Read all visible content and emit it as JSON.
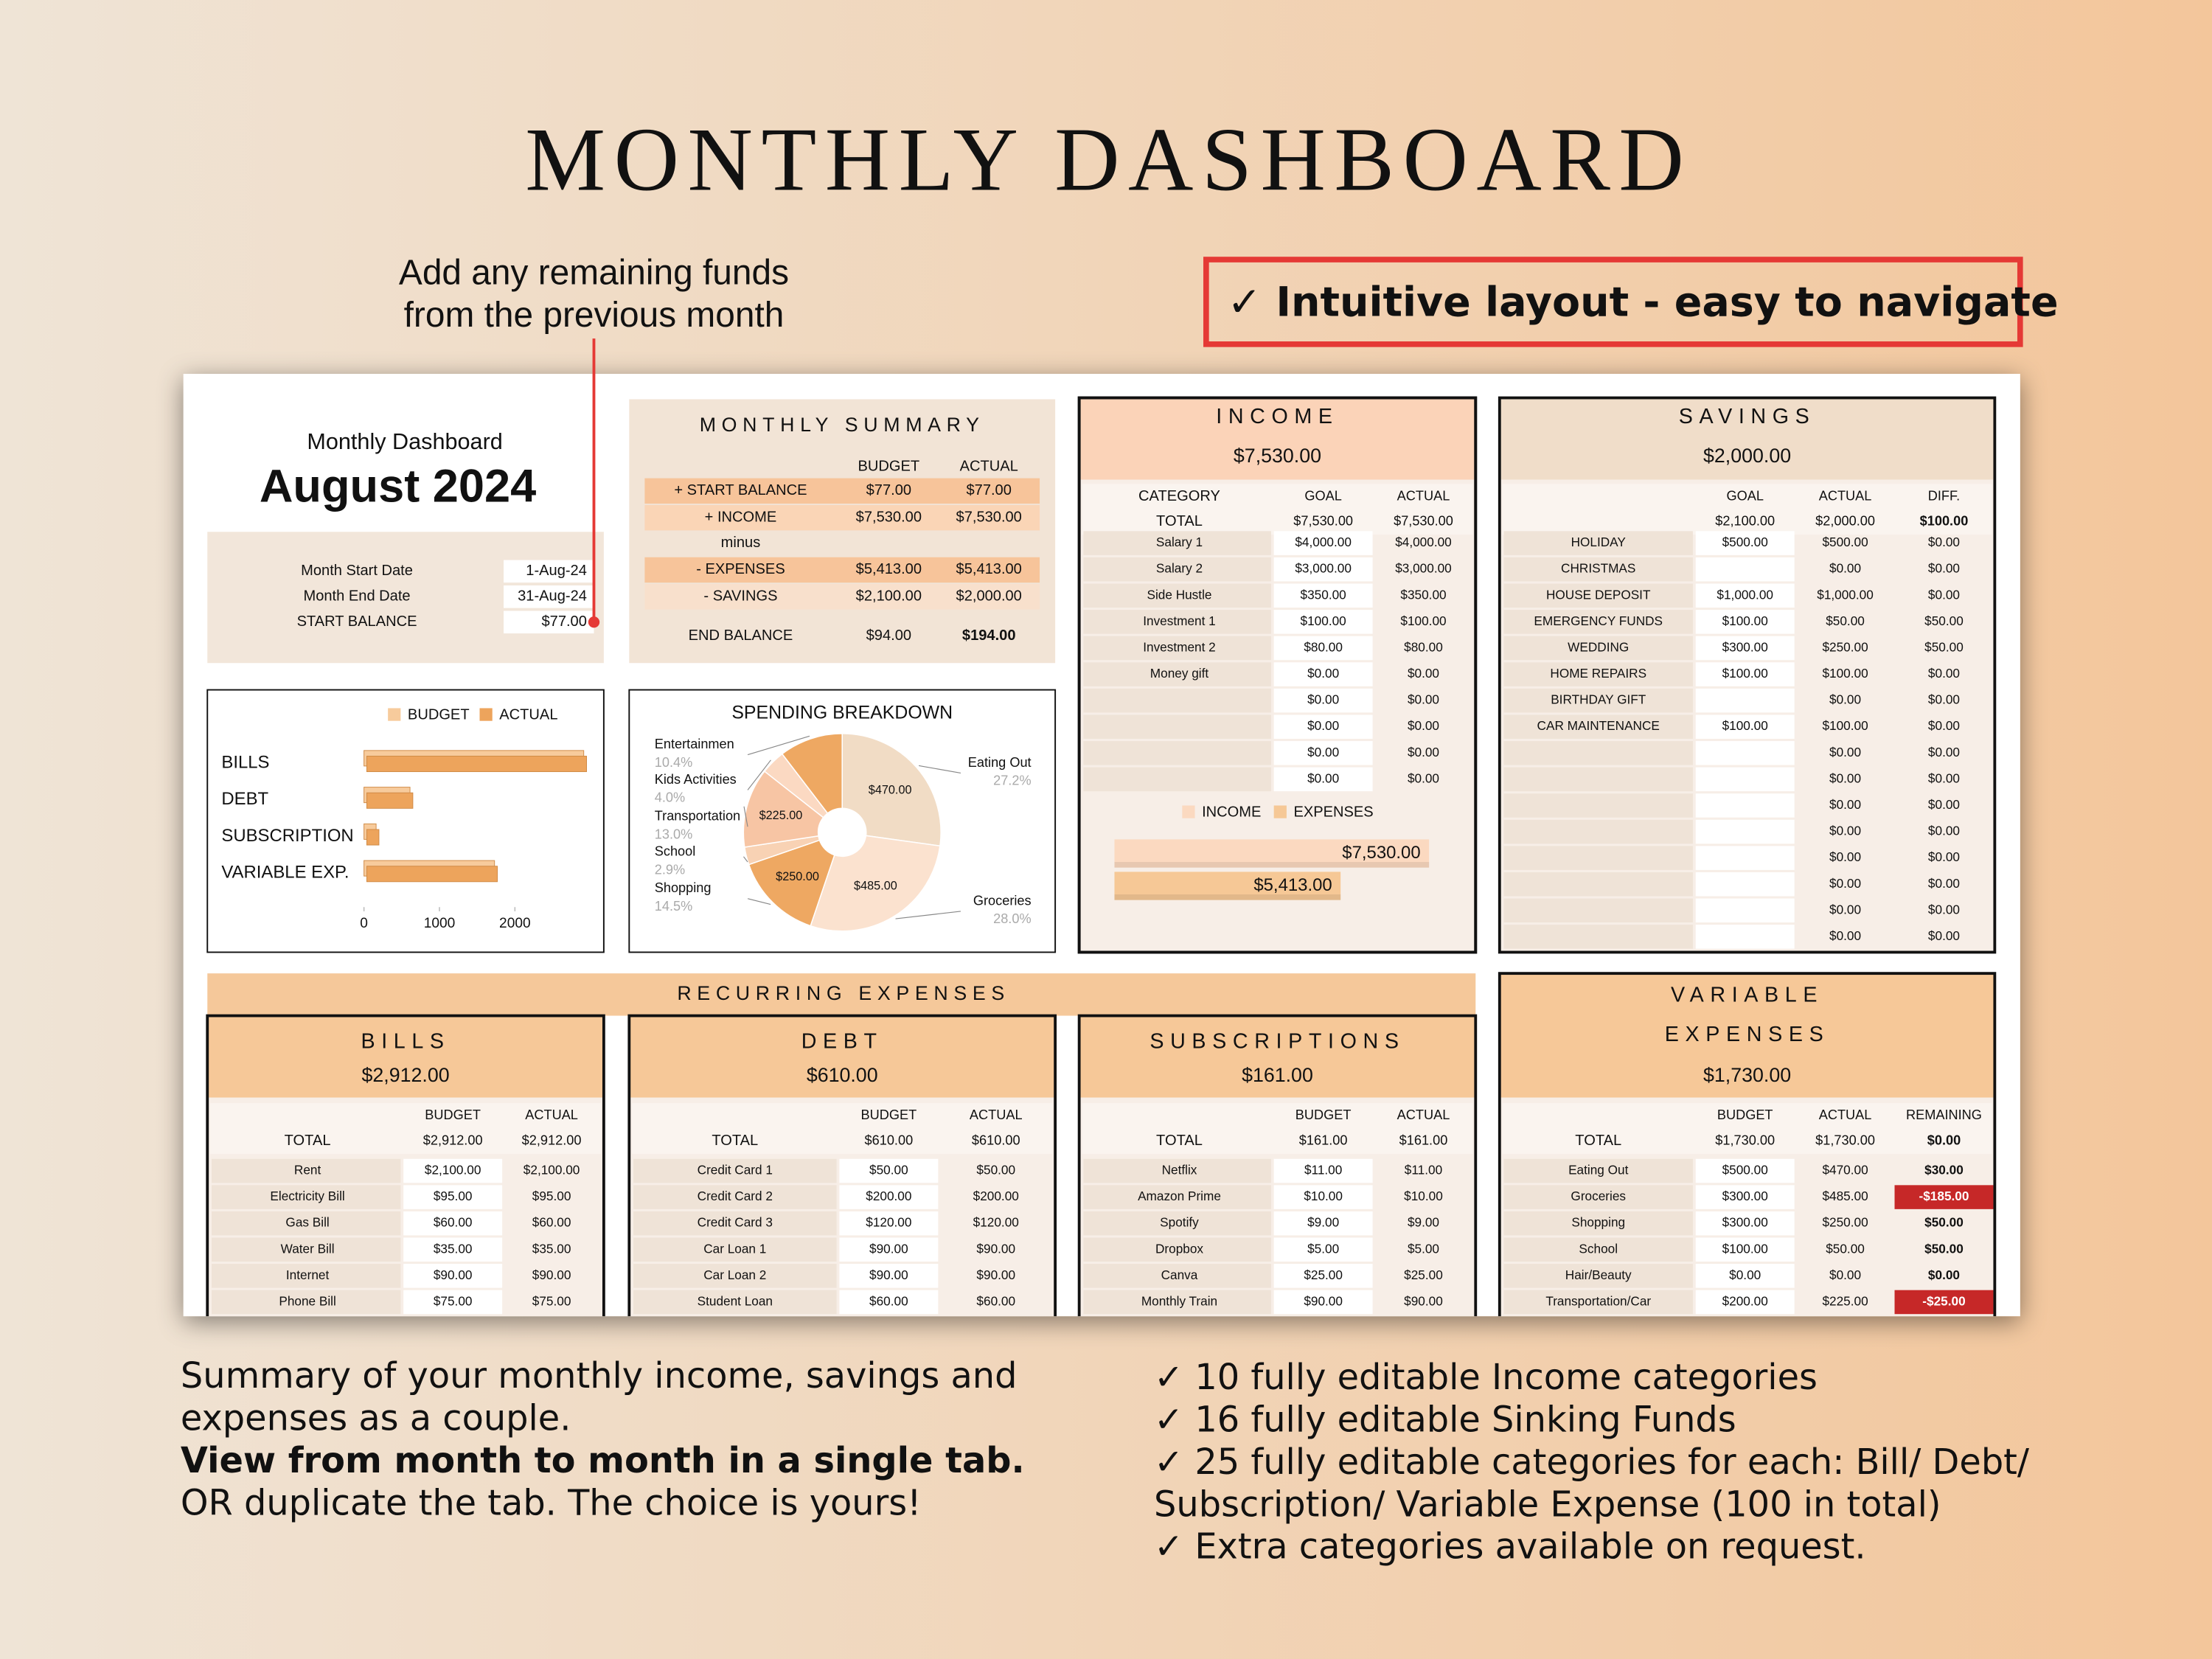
{
  "header": {
    "title": "MONTHLY DASHBOARD",
    "note": [
      "Add any remaining funds",
      "from the previous month"
    ],
    "badge": "✓ Intuitive layout - easy to navigate"
  },
  "dashboard": {
    "caption": "Monthly Dashboard",
    "month": "August 2024",
    "dates": [
      [
        "Month Start Date",
        "1-Aug-24"
      ],
      [
        "Month End Date",
        "31-Aug-24"
      ],
      [
        "START BALANCE",
        "$77.00"
      ]
    ]
  },
  "summary": {
    "title": "MONTHLY SUMMARY",
    "columns": [
      "BUDGET",
      "ACTUAL"
    ],
    "rows": [
      [
        "+ START BALANCE",
        "$77.00",
        "$77.00"
      ],
      [
        "+ INCOME",
        "$7,530.00",
        "$7,530.00"
      ],
      [
        "minus",
        null,
        null
      ],
      [
        "- EXPENSES",
        "$5,413.00",
        "$5,413.00"
      ],
      [
        "- SAVINGS",
        "$2,100.00",
        "$2,000.00"
      ],
      [
        "END BALANCE",
        "$94.00",
        "$194.00"
      ]
    ]
  },
  "chart_data": [
    {
      "type": "bar",
      "categories": [
        "BILLS",
        "DEBT",
        "SUBSCRIPTION",
        "VARIABLE EXP."
      ],
      "series": [
        {
          "name": "BUDGET",
          "color": "#f7cb9c",
          "values": [
            2912,
            610,
            161,
            1730
          ]
        },
        {
          "name": "ACTUAL",
          "color": "#eda45c",
          "values": [
            2912,
            610,
            161,
            1730
          ]
        }
      ],
      "xlim": [
        0,
        3000
      ],
      "xticks": [
        0,
        1000,
        2000
      ]
    },
    {
      "type": "pie",
      "title": "SPENDING BREAKDOWN",
      "categories": [
        "Eating Out",
        "Groceries",
        "Shopping",
        "School",
        "Transportation",
        "Kids Activities",
        "Entertainmen"
      ],
      "values": [
        27.2,
        28.0,
        14.5,
        2.9,
        13.0,
        4.0,
        10.4
      ],
      "value_labels": [
        "27.2%",
        "28.0%",
        "14.5%",
        "2.9%",
        "13.0%",
        "4.0%",
        "10.4%"
      ],
      "amount_labels": [
        "$470.00",
        "$485.00",
        "$250.00",
        null,
        "$225.00",
        null,
        null
      ],
      "colors": [
        "#f1dcc5",
        "#fbe2cf",
        "#eea862",
        "#f8d2b4",
        "#f7c5a4",
        "#fbd9c2",
        "#eea862"
      ]
    },
    {
      "type": "bar",
      "series": [
        {
          "name": "INCOME",
          "color": "#fbd9c0",
          "values": [
            7530
          ],
          "value_labels": [
            "$7,530.00"
          ]
        },
        {
          "name": "EXPENSES",
          "color": "#f6c896",
          "values": [
            5413
          ],
          "value_labels": [
            "$5,413.00"
          ]
        }
      ]
    }
  ],
  "income": {
    "title": "INCOME",
    "total": "$7,530.00",
    "columns": [
      "CATEGORY",
      "GOAL",
      "ACTUAL"
    ],
    "total_row": [
      "TOTAL",
      "$7,530.00",
      "$7,530.00"
    ],
    "rows": [
      [
        "Salary 1",
        "$4,000.00",
        "$4,000.00"
      ],
      [
        "Salary 2",
        "$3,000.00",
        "$3,000.00"
      ],
      [
        "Side Hustle",
        "$350.00",
        "$350.00"
      ],
      [
        "Investment 1",
        "$100.00",
        "$100.00"
      ],
      [
        "Investment 2",
        "$80.00",
        "$80.00"
      ],
      [
        "Money gift",
        "$0.00",
        "$0.00"
      ],
      [
        null,
        "$0.00",
        "$0.00"
      ],
      [
        null,
        "$0.00",
        "$0.00"
      ],
      [
        null,
        "$0.00",
        "$0.00"
      ],
      [
        null,
        "$0.00",
        "$0.00"
      ]
    ]
  },
  "savings": {
    "title": "SAVINGS",
    "total": "$2,000.00",
    "columns": [
      null,
      "GOAL",
      "ACTUAL",
      "DIFF."
    ],
    "total_row": [
      null,
      "$2,100.00",
      "$2,000.00",
      "$100.00"
    ],
    "rows": [
      [
        "HOLIDAY",
        "$500.00",
        "$500.00",
        "$0.00"
      ],
      [
        "CHRISTMAS",
        null,
        "$0.00",
        "$0.00"
      ],
      [
        "HOUSE DEPOSIT",
        "$1,000.00",
        "$1,000.00",
        "$0.00"
      ],
      [
        "EMERGENCY FUNDS",
        "$100.00",
        "$50.00",
        "$50.00"
      ],
      [
        "WEDDING",
        "$300.00",
        "$250.00",
        "$50.00"
      ],
      [
        "HOME REPAIRS",
        "$100.00",
        "$100.00",
        "$0.00"
      ],
      [
        "BIRTHDAY GIFT",
        null,
        "$0.00",
        "$0.00"
      ],
      [
        "CAR MAINTENANCE",
        "$100.00",
        "$100.00",
        "$0.00"
      ],
      [
        null,
        null,
        "$0.00",
        "$0.00"
      ],
      [
        null,
        null,
        "$0.00",
        "$0.00"
      ],
      [
        null,
        null,
        "$0.00",
        "$0.00"
      ],
      [
        null,
        null,
        "$0.00",
        "$0.00"
      ],
      [
        null,
        null,
        "$0.00",
        "$0.00"
      ],
      [
        null,
        null,
        "$0.00",
        "$0.00"
      ],
      [
        null,
        null,
        "$0.00",
        "$0.00"
      ],
      [
        null,
        null,
        "$0.00",
        "$0.00"
      ]
    ]
  },
  "recurring": {
    "title": "RECURRING EXPENSES"
  },
  "bills": {
    "title": "BILLS",
    "total": "$2,912.00",
    "columns": [
      null,
      "BUDGET",
      "ACTUAL"
    ],
    "total_row": [
      "TOTAL",
      "$2,912.00",
      "$2,912.00"
    ],
    "rows": [
      [
        "Rent",
        "$2,100.00",
        "$2,100.00"
      ],
      [
        "Electricity Bill",
        "$95.00",
        "$95.00"
      ],
      [
        "Gas Bill",
        "$60.00",
        "$60.00"
      ],
      [
        "Water Bill",
        "$35.00",
        "$35.00"
      ],
      [
        "Internet",
        "$90.00",
        "$90.00"
      ],
      [
        "Phone Bill",
        "$75.00",
        "$75.00"
      ]
    ]
  },
  "debt": {
    "title": "DEBT",
    "total": "$610.00",
    "columns": [
      null,
      "BUDGET",
      "ACTUAL"
    ],
    "total_row": [
      "TOTAL",
      "$610.00",
      "$610.00"
    ],
    "rows": [
      [
        "Credit Card 1",
        "$50.00",
        "$50.00"
      ],
      [
        "Credit Card 2",
        "$200.00",
        "$200.00"
      ],
      [
        "Credit Card 3",
        "$120.00",
        "$120.00"
      ],
      [
        "Car Loan 1",
        "$90.00",
        "$90.00"
      ],
      [
        "Car Loan 2",
        "$90.00",
        "$90.00"
      ],
      [
        "Student Loan",
        "$60.00",
        "$60.00"
      ]
    ]
  },
  "subscriptions": {
    "title": "SUBSCRIPTIONS",
    "total": "$161.00",
    "columns": [
      null,
      "BUDGET",
      "ACTUAL"
    ],
    "total_row": [
      "TOTAL",
      "$161.00",
      "$161.00"
    ],
    "rows": [
      [
        "Netflix",
        "$11.00",
        "$11.00"
      ],
      [
        "Amazon Prime",
        "$10.00",
        "$10.00"
      ],
      [
        "Spotify",
        "$9.00",
        "$9.00"
      ],
      [
        "Dropbox",
        "$5.00",
        "$5.00"
      ],
      [
        "Canva",
        "$25.00",
        "$25.00"
      ],
      [
        "Monthly Train",
        "$90.00",
        "$90.00"
      ]
    ]
  },
  "variable": {
    "title": [
      "VARIABLE",
      "EXPENSES"
    ],
    "total": "$1,730.00",
    "columns": [
      null,
      "BUDGET",
      "ACTUAL",
      "REMAINING"
    ],
    "total_row": [
      "TOTAL",
      "$1,730.00",
      "$1,730.00",
      "$0.00"
    ],
    "rows": [
      [
        "Eating Out",
        "$500.00",
        "$470.00",
        "$30.00"
      ],
      [
        "Groceries",
        "$300.00",
        "$485.00",
        "-$185.00"
      ],
      [
        "Shopping",
        "$300.00",
        "$250.00",
        "$50.00"
      ],
      [
        "School",
        "$100.00",
        "$50.00",
        "$50.00"
      ],
      [
        "Hair/Beauty",
        "$0.00",
        "$0.00",
        "$0.00"
      ],
      [
        "Transportation/Car",
        "$200.00",
        "$225.00",
        "-$25.00"
      ]
    ]
  },
  "footer": {
    "left": [
      "Summary of your monthly income, savings and",
      "expenses as a couple.",
      "View from month to month in a single tab.",
      "OR duplicate the tab. The choice is yours!"
    ],
    "right": [
      "✓ 10 fully editable Income categories",
      "✓ 16 fully editable Sinking Funds",
      "✓ 25 fully editable categories for each: Bill/ Debt/",
      "Subscription/ Variable Expense (100 in total)",
      "✓ Extra categories available on request."
    ]
  }
}
